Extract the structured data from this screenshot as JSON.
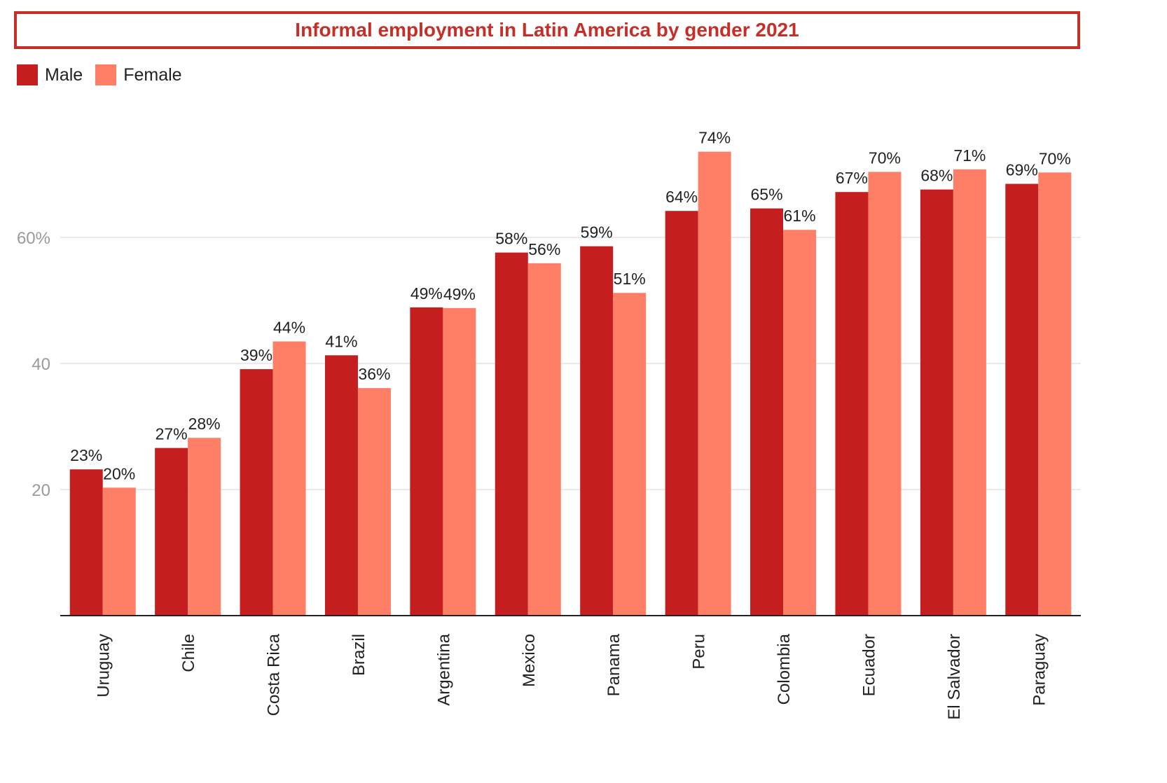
{
  "title": "Informal employment in Latin America by gender 2021",
  "legend": {
    "male": "Male",
    "female": "Female"
  },
  "colors": {
    "male": "#c41e1e",
    "female": "#ff7f66",
    "title": "#c62f28"
  },
  "chart_data": {
    "type": "bar",
    "title": "Informal employment in Latin America by gender 2021",
    "categories": [
      "Uruguay",
      "Chile",
      "Costa Rica",
      "Brazil",
      "Argentina",
      "Mexico",
      "Panama",
      "Peru",
      "Colombia",
      "Ecuador",
      "El Salvador",
      "Paraguay"
    ],
    "series": [
      {
        "name": "Male",
        "values": [
          23.2,
          26.6,
          39.1,
          41.3,
          48.9,
          57.6,
          58.6,
          64.2,
          64.6,
          67.2,
          67.6,
          68.5
        ],
        "labels": [
          "23%",
          "27%",
          "39%",
          "41%",
          "49%",
          "58%",
          "59%",
          "64%",
          "65%",
          "67%",
          "68%",
          "69%"
        ]
      },
      {
        "name": "Female",
        "values": [
          20.3,
          28.2,
          43.5,
          36.1,
          48.8,
          55.9,
          51.2,
          73.6,
          61.2,
          70.4,
          70.8,
          70.3
        ],
        "labels": [
          "20%",
          "28%",
          "44%",
          "36%",
          "49%",
          "56%",
          "51%",
          "74%",
          "61%",
          "70%",
          "71%",
          "70%"
        ]
      }
    ],
    "yticks": [
      {
        "value": 20,
        "label": "20"
      },
      {
        "value": 40,
        "label": "40"
      },
      {
        "value": 60,
        "label": "60%"
      }
    ],
    "ylim": [
      0,
      80
    ],
    "grid": true,
    "legend_position": "top-left",
    "xlabel": "",
    "ylabel": ""
  }
}
